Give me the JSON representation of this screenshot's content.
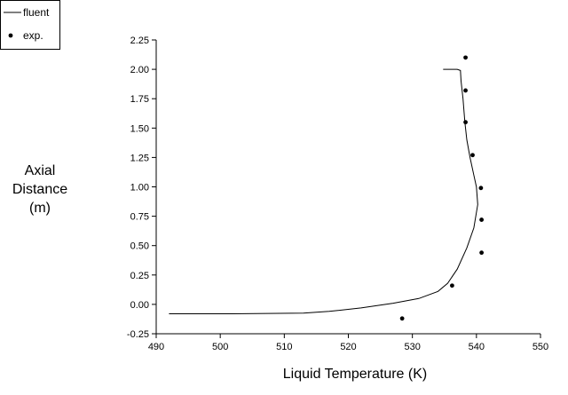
{
  "chart_data": {
    "type": "scatter",
    "xlabel": "Liquid Temperature (K)",
    "ylabel_lines": [
      "Axial",
      "Distance",
      "(m)"
    ],
    "xlim": [
      490,
      550
    ],
    "ylim": [
      -0.25,
      2.25
    ],
    "xticks": [
      490,
      500,
      510,
      520,
      530,
      540,
      550
    ],
    "yticks": [
      "-0.25",
      "0.00",
      "0.25",
      "0.50",
      "0.75",
      "1.00",
      "1.25",
      "1.50",
      "1.75",
      "2.00",
      "2.25"
    ],
    "grid": false,
    "legend": {
      "placement": "top-left",
      "entries": [
        {
          "label": "fluent",
          "marker": "line"
        },
        {
          "label": "exp.",
          "marker": "dot"
        }
      ]
    },
    "series": [
      {
        "name": "fluent",
        "kind": "line",
        "color": "#000000",
        "points": [
          [
            492.0,
            -0.08
          ],
          [
            502.0,
            -0.08
          ],
          [
            513.0,
            -0.075
          ],
          [
            517.0,
            -0.06
          ],
          [
            522.0,
            -0.03
          ],
          [
            527.0,
            0.01
          ],
          [
            531.0,
            0.05
          ],
          [
            534.0,
            0.11
          ],
          [
            535.5,
            0.18
          ],
          [
            537.0,
            0.3
          ],
          [
            538.5,
            0.48
          ],
          [
            539.6,
            0.65
          ],
          [
            540.2,
            0.85
          ],
          [
            540.0,
            1.0
          ],
          [
            539.6,
            1.1
          ],
          [
            539.0,
            1.25
          ],
          [
            538.5,
            1.4
          ],
          [
            538.2,
            1.55
          ],
          [
            537.9,
            1.75
          ],
          [
            537.6,
            1.9
          ],
          [
            537.5,
            1.99
          ],
          [
            537.0,
            2.0
          ],
          [
            534.8,
            2.0
          ]
        ]
      },
      {
        "name": "exp.",
        "kind": "scatter",
        "color": "#000000",
        "points": [
          [
            528.4,
            -0.12
          ],
          [
            536.2,
            0.16
          ],
          [
            540.8,
            0.44
          ],
          [
            540.8,
            0.72
          ],
          [
            540.7,
            0.99
          ],
          [
            539.4,
            1.27
          ],
          [
            538.3,
            1.55
          ],
          [
            538.3,
            1.82
          ],
          [
            538.3,
            2.1
          ]
        ]
      }
    ]
  }
}
